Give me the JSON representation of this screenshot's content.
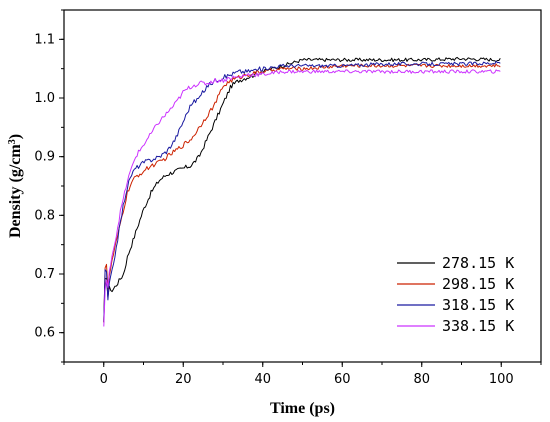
{
  "chart_data": {
    "type": "line",
    "title": "",
    "xlabel": "Time (ps)",
    "ylabel_main": "Density (g/cm",
    "ylabel_sup": "3",
    "ylabel_close": ")",
    "xlim": [
      -10,
      110
    ],
    "ylim": [
      0.55,
      1.15
    ],
    "xticks": [
      "0",
      "20",
      "40",
      "60",
      "80",
      "100"
    ],
    "yticks": [
      "0.6",
      "0.7",
      "0.8",
      "0.9",
      "1.0",
      "1.1"
    ],
    "xtick_values": [
      0,
      20,
      40,
      60,
      80,
      100
    ],
    "ytick_values": [
      0.6,
      0.7,
      0.8,
      0.9,
      1.0,
      1.1
    ],
    "legend_position": "bottom-right",
    "series": [
      {
        "name": "278.15 K",
        "color": "#000000",
        "x": [
          0,
          0.5,
          1,
          1.5,
          2,
          3,
          4,
          5,
          6,
          7,
          8,
          9,
          10,
          12,
          14,
          15,
          16,
          18,
          20,
          22,
          24,
          26,
          28,
          30,
          32,
          34,
          36,
          40,
          45,
          50,
          55,
          60,
          70,
          80,
          90,
          100
        ],
        "y": [
          0.615,
          0.72,
          0.66,
          0.68,
          0.67,
          0.68,
          0.69,
          0.7,
          0.73,
          0.75,
          0.77,
          0.79,
          0.81,
          0.84,
          0.86,
          0.865,
          0.87,
          0.875,
          0.88,
          0.885,
          0.9,
          0.93,
          0.96,
          0.99,
          1.02,
          1.03,
          1.035,
          1.045,
          1.055,
          1.065,
          1.065,
          1.065,
          1.065,
          1.065,
          1.067,
          1.065
        ]
      },
      {
        "name": "298.15 K",
        "color": "#cc2200",
        "x": [
          0,
          0.5,
          1,
          1.5,
          2,
          3,
          4,
          5,
          6,
          7,
          8,
          10,
          12,
          14,
          16,
          18,
          20,
          22,
          24,
          26,
          28,
          30,
          32,
          34,
          36,
          40,
          45,
          50,
          55,
          60,
          70,
          80,
          90,
          100
        ],
        "y": [
          0.62,
          0.75,
          0.67,
          0.7,
          0.72,
          0.75,
          0.78,
          0.81,
          0.84,
          0.855,
          0.865,
          0.875,
          0.885,
          0.89,
          0.9,
          0.91,
          0.92,
          0.93,
          0.95,
          0.97,
          0.99,
          1.02,
          1.03,
          1.035,
          1.04,
          1.045,
          1.05,
          1.05,
          1.052,
          1.055,
          1.055,
          1.055,
          1.055,
          1.055
        ]
      },
      {
        "name": "318.15 K",
        "color": "#1a1aa0",
        "x": [
          0,
          0.5,
          1,
          1.5,
          2,
          3,
          4,
          5,
          6,
          7,
          8,
          10,
          12,
          14,
          16,
          18,
          20,
          22,
          24,
          26,
          28,
          30,
          32,
          34,
          36,
          40,
          45,
          50,
          55,
          60,
          70,
          80,
          90,
          100
        ],
        "y": [
          0.62,
          0.74,
          0.65,
          0.69,
          0.7,
          0.74,
          0.78,
          0.82,
          0.85,
          0.87,
          0.88,
          0.89,
          0.895,
          0.9,
          0.91,
          0.93,
          0.96,
          0.99,
          1.0,
          1.02,
          1.03,
          1.035,
          1.04,
          1.045,
          1.045,
          1.05,
          1.055,
          1.055,
          1.055,
          1.055,
          1.058,
          1.058,
          1.058,
          1.06
        ]
      },
      {
        "name": "338.15 K",
        "color": "#cc33ff",
        "x": [
          0,
          0.5,
          1,
          1.5,
          2,
          3,
          4,
          5,
          6,
          7,
          8,
          10,
          12,
          14,
          16,
          18,
          20,
          22,
          24,
          26,
          28,
          30,
          32,
          34,
          36,
          40,
          45,
          50,
          55,
          60,
          70,
          80,
          90,
          100
        ],
        "y": [
          0.61,
          0.7,
          0.67,
          0.71,
          0.73,
          0.76,
          0.8,
          0.83,
          0.86,
          0.88,
          0.9,
          0.92,
          0.94,
          0.96,
          0.975,
          0.99,
          1.01,
          1.02,
          1.025,
          1.025,
          1.03,
          1.03,
          1.035,
          1.035,
          1.04,
          1.04,
          1.045,
          1.045,
          1.045,
          1.045,
          1.045,
          1.045,
          1.045,
          1.045
        ]
      }
    ]
  }
}
